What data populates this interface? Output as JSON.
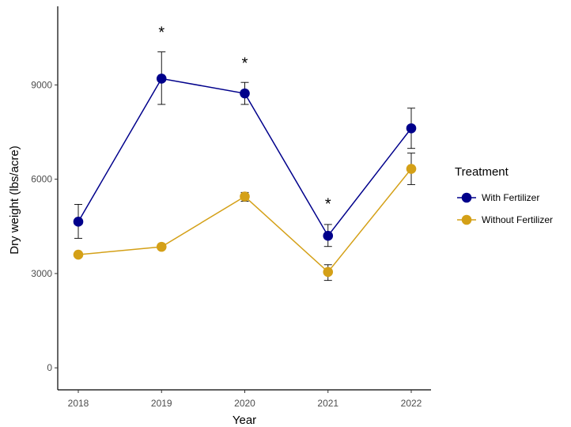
{
  "chart_data": {
    "type": "line",
    "xlabel": "Year",
    "ylabel": "Dry weight (lbs/acre)",
    "categories": [
      "2018",
      "2019",
      "2020",
      "2021",
      "2022"
    ],
    "ylim": [
      -700,
      11500
    ],
    "yticks": [
      0,
      3000,
      6000,
      9000
    ],
    "grid": false,
    "legend": {
      "title": "Treatment",
      "position": "right"
    },
    "series": [
      {
        "name": "With Fertilizer",
        "color": "#00008b",
        "values": [
          4650,
          9200,
          8730,
          4200,
          7620
        ],
        "error_low": [
          4120,
          8380,
          8380,
          3860,
          6980
        ],
        "error_high": [
          5200,
          10050,
          9080,
          4560,
          8260
        ]
      },
      {
        "name": "Without Fertilizer",
        "color": "#d4a017",
        "values": [
          3600,
          3850,
          5450,
          3050,
          6330
        ],
        "error_low": [
          3530,
          3800,
          5300,
          2780,
          5830
        ],
        "error_high": [
          3670,
          3900,
          5580,
          3280,
          6830
        ]
      }
    ],
    "annotations": [
      {
        "category": "2019",
        "text": "*",
        "y": 10680
      },
      {
        "category": "2020",
        "text": "*",
        "y": 9700
      },
      {
        "category": "2021",
        "text": "*",
        "y": 5220
      }
    ]
  }
}
